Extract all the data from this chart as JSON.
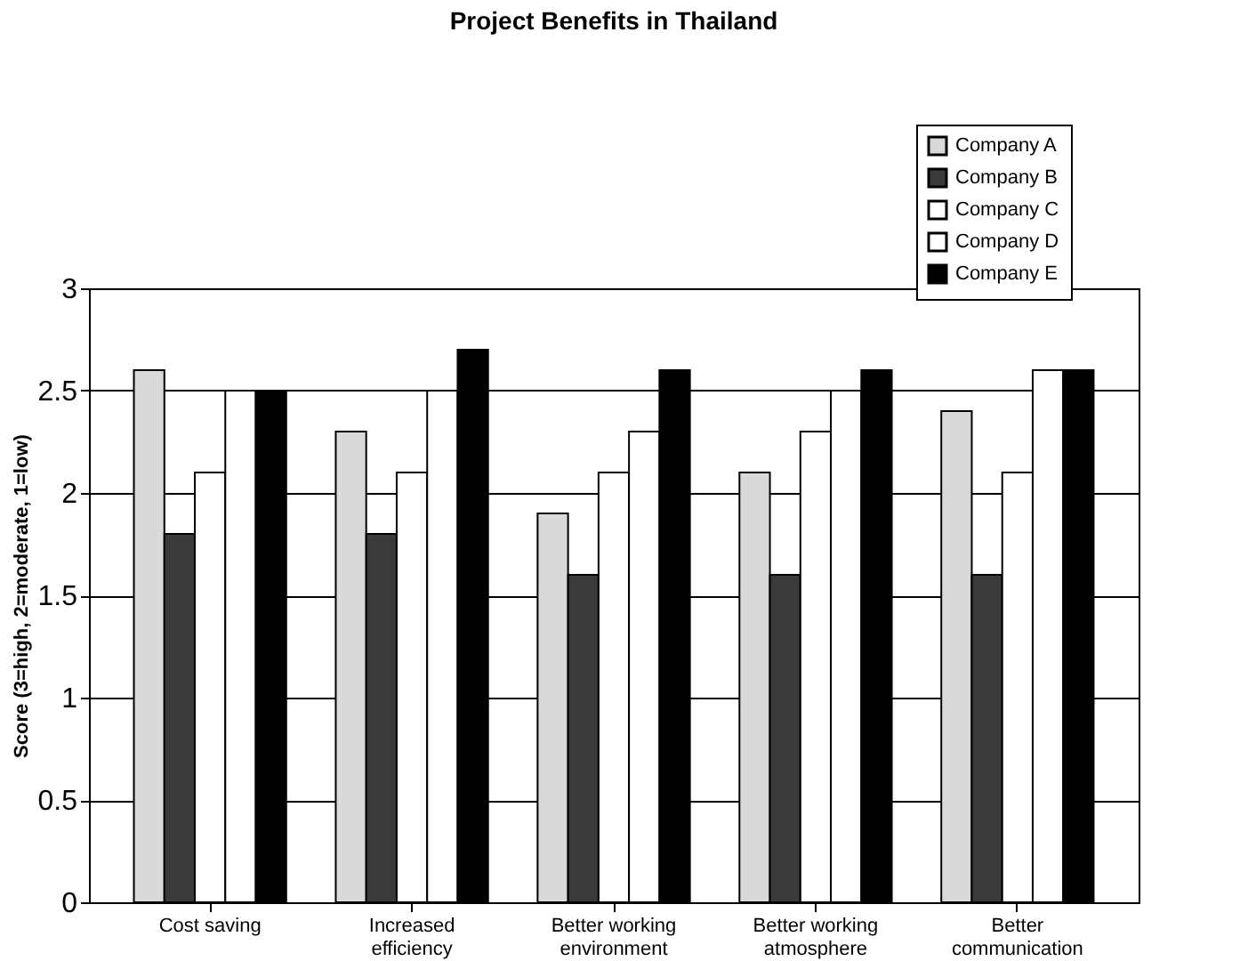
{
  "chart_data": {
    "type": "bar",
    "title": "Project Benefits in Thailand",
    "ylabel": "Score (3=high, 2=moderate, 1=low)",
    "categories": [
      "Cost saving",
      "Increased\nefficiency",
      "Better working\nenvironment",
      "Better working\natmosphere",
      "Better\ncommunication"
    ],
    "series": [
      {
        "name": "Company A",
        "color": "#d9d9d9",
        "values": [
          2.6,
          2.3,
          1.9,
          2.1,
          2.4
        ]
      },
      {
        "name": "Company B",
        "color": "#3a3a3a",
        "values": [
          1.8,
          1.8,
          1.6,
          1.6,
          1.6
        ]
      },
      {
        "name": "Company C",
        "color": "#ffffff",
        "values": [
          2.1,
          2.1,
          2.1,
          2.3,
          2.1
        ]
      },
      {
        "name": "Company D",
        "color": "#ffffff",
        "values": [
          2.5,
          2.5,
          2.3,
          2.5,
          2.6
        ]
      },
      {
        "name": "Company E",
        "color": "#000000",
        "values": [
          2.5,
          2.7,
          2.6,
          2.6,
          2.6
        ]
      }
    ],
    "ylim": [
      0,
      3
    ],
    "yticks": [
      0,
      0.5,
      1,
      1.5,
      2,
      2.5,
      3
    ],
    "grid": "y",
    "legend": "top right"
  }
}
